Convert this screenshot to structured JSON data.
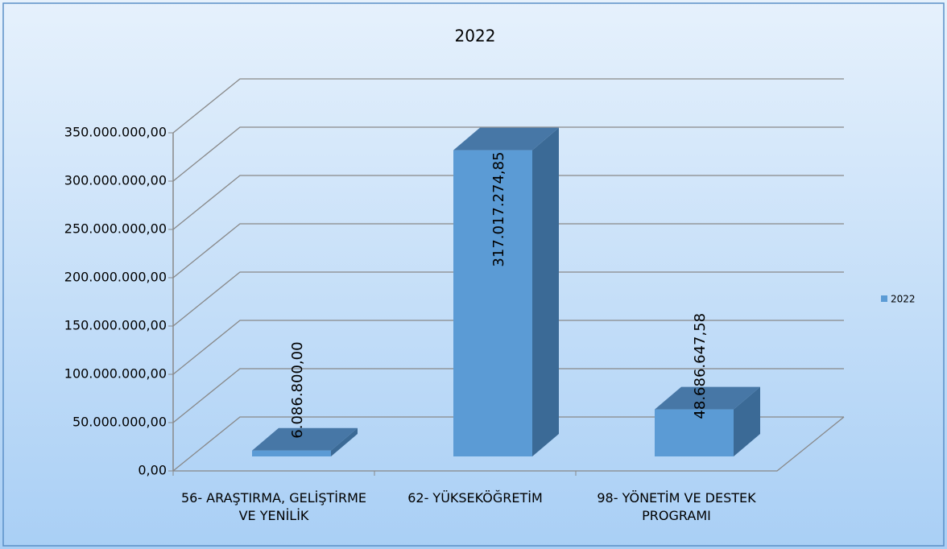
{
  "chart_data": {
    "type": "bar3d",
    "title": "2022",
    "categories": [
      "56- ARAŞTIRMA, GELİŞTİRME VE YENİLİK",
      "62- YÜKSEKÖĞRETİM",
      "98- YÖNETİM VE DESTEK PROGRAMI"
    ],
    "series": [
      {
        "name": "2022",
        "color": "#5b9bd5",
        "values": [
          6086800,
          317017274.85,
          48686647.58
        ],
        "value_labels": [
          "6.086.800,00",
          "317.017.274,85",
          "48.686.647,58"
        ]
      }
    ],
    "ylim": [
      0,
      350000000
    ],
    "yticks": [
      {
        "value": 0,
        "label": "0,00"
      },
      {
        "value": 50000000,
        "label": "50.000.000,00"
      },
      {
        "value": 100000000,
        "label": "100.000.000,00"
      },
      {
        "value": 150000000,
        "label": "150.000.000,00"
      },
      {
        "value": 200000000,
        "label": "200.000.000,00"
      },
      {
        "value": 250000000,
        "label": "250.000.000,00"
      },
      {
        "value": 300000000,
        "label": "300.000.000,00"
      },
      {
        "value": 350000000,
        "label": "350.000.000,00"
      }
    ],
    "grid": true,
    "legend": "right"
  }
}
